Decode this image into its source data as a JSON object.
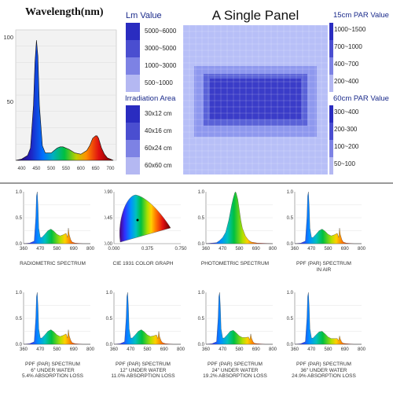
{
  "top_left": {
    "title": "Wavelength(nm)",
    "y_ticks": [
      "100",
      "50"
    ],
    "x_ticks": [
      "400",
      "450",
      "500",
      "550",
      "600",
      "650",
      "700"
    ]
  },
  "lm_legend": {
    "header": "Lm Value",
    "rows": [
      "5000~6000",
      "3000~5000",
      "1000~3000",
      "500~1000"
    ],
    "colors": [
      "#2a2cc0",
      "#4a4ed0",
      "#7d82e4",
      "#b4b8f2"
    ]
  },
  "irr_legend": {
    "header": "Irradiation Area",
    "rows": [
      "30x12 cm",
      "40x16 cm",
      "60x24 cm",
      "60x60 cm"
    ],
    "colors": [
      "#2a2cc0",
      "#4a4ed0",
      "#7d82e4",
      "#b4b8f2"
    ]
  },
  "panel": {
    "title": "A Single Panel"
  },
  "par15": {
    "header": "15cm PAR Value",
    "rows": [
      "1000~1500",
      "700~1000",
      "400~700",
      "200~400"
    ],
    "colors": [
      "#2a2cc0",
      "#4a4ed0",
      "#7d82e4",
      "#b4b8f2"
    ]
  },
  "par60": {
    "header": "60cm PAR Value",
    "rows": [
      "300~400",
      "200-300",
      "100~200",
      "50~100"
    ],
    "colors": [
      "#2a2cc0",
      "#4a4ed0",
      "#7d82e4",
      "#b4b8f2"
    ]
  },
  "chart_data": [
    {
      "type": "line",
      "x": [
        380,
        400,
        420,
        430,
        440,
        445,
        450,
        455,
        460,
        470,
        480,
        490,
        500,
        510,
        520,
        530,
        540,
        560,
        580,
        600,
        620,
        630,
        640,
        650,
        655,
        660,
        670,
        680,
        690,
        700,
        710
      ],
      "values": [
        0,
        1,
        4,
        10,
        45,
        80,
        98,
        85,
        45,
        12,
        6,
        6,
        6,
        8,
        10,
        11,
        11,
        9,
        6,
        5,
        8,
        12,
        18,
        20,
        20,
        18,
        10,
        5,
        2,
        1,
        0
      ],
      "ylim": [
        0,
        100
      ],
      "x_ticks": [
        400,
        450,
        500,
        550,
        600,
        650,
        700
      ],
      "y_ticks": [
        100,
        50
      ]
    },
    {
      "type": "line",
      "caption": "RADIOMETRIC SPECTRUM",
      "x": [
        360,
        400,
        430,
        440,
        445,
        450,
        455,
        460,
        470,
        480,
        500,
        520,
        540,
        560,
        580,
        600,
        620,
        640,
        650,
        655,
        660,
        670,
        680,
        700,
        750,
        800
      ],
      "values": [
        0,
        0.01,
        0.05,
        0.5,
        0.92,
        1.0,
        0.72,
        0.3,
        0.12,
        0.12,
        0.18,
        0.25,
        0.28,
        0.24,
        0.18,
        0.15,
        0.17,
        0.2,
        0.12,
        0.3,
        0.18,
        0.08,
        0.03,
        0.01,
        0,
        0
      ],
      "ylim": [
        0,
        1.0
      ],
      "x_ticks": [
        360,
        470,
        580,
        690,
        800
      ],
      "y_ticks": [
        0,
        0.5,
        1.0
      ]
    },
    {
      "type": "scatter",
      "caption": "CIE 1931 COLOR GRAPH",
      "xlim": [
        0,
        0.75
      ],
      "ylim": [
        0,
        0.9
      ],
      "x_ticks": [
        "0.000",
        "0.375",
        "0.750"
      ],
      "y_ticks": [
        "0.00",
        "0.45",
        "0.90"
      ]
    },
    {
      "type": "line",
      "caption": "PHOTOMETRIC SPECTRUM",
      "x": [
        360,
        430,
        450,
        470,
        490,
        510,
        520,
        530,
        540,
        550,
        555,
        560,
        570,
        580,
        590,
        600,
        620,
        640,
        660,
        700,
        800
      ],
      "values": [
        0,
        0.02,
        0.06,
        0.12,
        0.22,
        0.45,
        0.6,
        0.75,
        0.88,
        0.98,
        1.0,
        0.97,
        0.85,
        0.65,
        0.45,
        0.3,
        0.15,
        0.07,
        0.03,
        0.01,
        0
      ],
      "ylim": [
        0,
        1.0
      ],
      "x_ticks": [
        360,
        470,
        580,
        690,
        800
      ],
      "y_ticks": [
        0,
        0.5,
        1.0
      ]
    },
    {
      "type": "line",
      "caption": "PPF (PAR) SPECTRUM\nIN AIR",
      "x": [
        360,
        400,
        430,
        440,
        445,
        450,
        455,
        460,
        470,
        480,
        500,
        520,
        540,
        560,
        580,
        600,
        620,
        640,
        650,
        655,
        660,
        670,
        680,
        700,
        750,
        800
      ],
      "values": [
        0,
        0.01,
        0.05,
        0.5,
        0.92,
        1.0,
        0.72,
        0.3,
        0.12,
        0.12,
        0.18,
        0.25,
        0.28,
        0.24,
        0.18,
        0.15,
        0.17,
        0.2,
        0.12,
        0.3,
        0.18,
        0.08,
        0.03,
        0.01,
        0,
        0
      ],
      "ylim": [
        0,
        1.0
      ],
      "x_ticks": [
        360,
        470,
        580,
        690,
        800
      ],
      "y_ticks": [
        0,
        0.5,
        1.0
      ]
    },
    {
      "type": "line",
      "caption": "PPF (PAR) SPECTRUM\n6\" UNDER WATER\n5.4% ABSORPTION LOSS",
      "x": [
        360,
        400,
        430,
        440,
        445,
        450,
        455,
        460,
        470,
        480,
        500,
        520,
        540,
        560,
        580,
        600,
        620,
        640,
        650,
        655,
        660,
        670,
        680,
        700,
        750,
        800
      ],
      "values": [
        0,
        0.01,
        0.05,
        0.5,
        0.92,
        1.0,
        0.72,
        0.3,
        0.12,
        0.12,
        0.18,
        0.25,
        0.28,
        0.24,
        0.18,
        0.15,
        0.17,
        0.2,
        0.12,
        0.28,
        0.17,
        0.08,
        0.03,
        0.01,
        0,
        0
      ],
      "ylim": [
        0,
        1.0
      ],
      "x_ticks": [
        360,
        470,
        580,
        690,
        800
      ],
      "y_ticks": [
        0,
        0.5,
        1.0
      ]
    },
    {
      "type": "line",
      "caption": "PPF (PAR) SPECTRUM\n12\" UNDER WATER\n11.0% ABSORPTION LOSS",
      "x": [
        360,
        400,
        430,
        440,
        445,
        450,
        455,
        460,
        470,
        480,
        500,
        520,
        540,
        560,
        580,
        600,
        620,
        640,
        650,
        655,
        660,
        670,
        680,
        700,
        750,
        800
      ],
      "values": [
        0,
        0.01,
        0.05,
        0.5,
        0.92,
        1.0,
        0.72,
        0.3,
        0.12,
        0.12,
        0.18,
        0.25,
        0.28,
        0.24,
        0.18,
        0.15,
        0.16,
        0.18,
        0.11,
        0.25,
        0.15,
        0.07,
        0.03,
        0.01,
        0,
        0
      ],
      "ylim": [
        0,
        1.0
      ],
      "x_ticks": [
        360,
        470,
        580,
        690,
        800
      ],
      "y_ticks": [
        0,
        0.5,
        1.0
      ]
    },
    {
      "type": "line",
      "caption": "PPF (PAR) SPECTRUM\n24\" UNDER WATER\n19.2% ABSORPTION LOSS",
      "x": [
        360,
        400,
        430,
        440,
        445,
        450,
        455,
        460,
        470,
        480,
        500,
        520,
        540,
        560,
        580,
        600,
        620,
        640,
        650,
        655,
        660,
        670,
        680,
        700,
        750,
        800
      ],
      "values": [
        0,
        0.01,
        0.05,
        0.5,
        0.92,
        1.0,
        0.72,
        0.3,
        0.12,
        0.12,
        0.18,
        0.25,
        0.27,
        0.22,
        0.16,
        0.13,
        0.13,
        0.14,
        0.09,
        0.2,
        0.12,
        0.05,
        0.02,
        0.01,
        0,
        0
      ],
      "ylim": [
        0,
        1.0
      ],
      "x_ticks": [
        360,
        470,
        580,
        690,
        800
      ],
      "y_ticks": [
        0,
        0.5,
        1.0
      ]
    },
    {
      "type": "line",
      "caption": "PPF (PAR) SPECTRUM\n36\" UNDER WATER\n24.9% ABSORPTION LOSS",
      "x": [
        360,
        400,
        430,
        440,
        445,
        450,
        455,
        460,
        470,
        480,
        500,
        520,
        540,
        560,
        580,
        600,
        620,
        640,
        650,
        655,
        660,
        670,
        680,
        700,
        750,
        800
      ],
      "values": [
        0,
        0.01,
        0.05,
        0.5,
        0.92,
        1.0,
        0.72,
        0.3,
        0.12,
        0.12,
        0.18,
        0.24,
        0.25,
        0.2,
        0.14,
        0.11,
        0.11,
        0.11,
        0.07,
        0.16,
        0.1,
        0.04,
        0.02,
        0.01,
        0,
        0
      ],
      "ylim": [
        0,
        1.0
      ],
      "x_ticks": [
        360,
        470,
        580,
        690,
        800
      ],
      "y_ticks": [
        0,
        0.5,
        1.0
      ]
    }
  ]
}
